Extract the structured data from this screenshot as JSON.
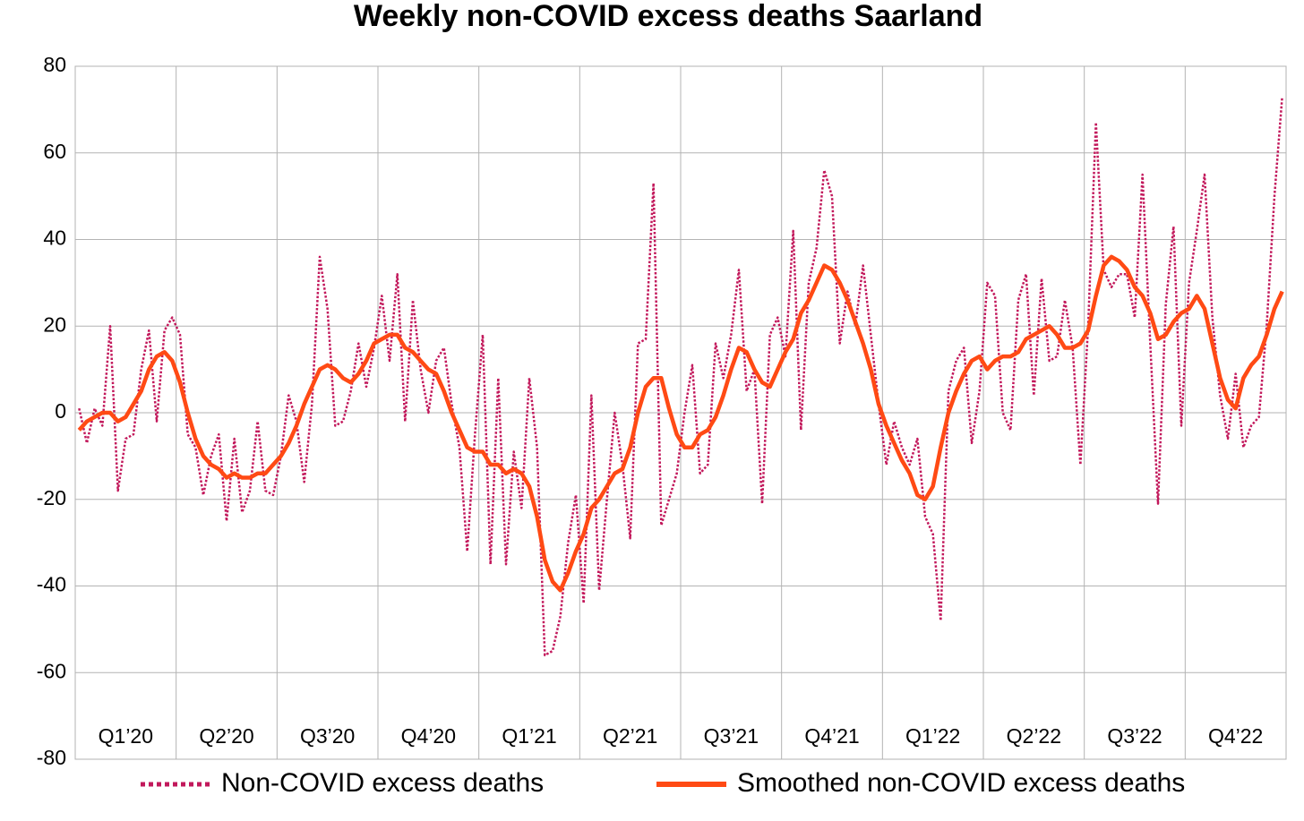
{
  "chart_data": {
    "type": "line",
    "title": "Weekly non-COVID excess deaths Saarland",
    "categories": [
      null,
      null,
      null,
      null,
      null,
      null,
      "Q1’20",
      null,
      null,
      null,
      null,
      null,
      null,
      null,
      null,
      null,
      null,
      null,
      null,
      "Q2’20",
      null,
      null,
      null,
      null,
      null,
      null,
      null,
      null,
      null,
      null,
      null,
      null,
      "Q3’20",
      null,
      null,
      null,
      null,
      null,
      null,
      null,
      null,
      null,
      null,
      null,
      null,
      "Q4’20",
      null,
      null,
      null,
      null,
      null,
      null,
      null,
      null,
      null,
      null,
      null,
      null,
      "Q1’21",
      null,
      null,
      null,
      null,
      null,
      null,
      null,
      null,
      null,
      null,
      null,
      null,
      "Q2’21",
      null,
      null,
      null,
      null,
      null,
      null,
      null,
      null,
      null,
      null,
      null,
      null,
      "Q3’21",
      null,
      null,
      null,
      null,
      null,
      null,
      null,
      null,
      null,
      null,
      null,
      null,
      "Q4’21",
      null,
      null,
      null,
      null,
      null,
      null,
      null,
      null,
      null,
      null,
      null,
      null,
      "Q1’22",
      null,
      null,
      null,
      null,
      null,
      null,
      null,
      null,
      null,
      null,
      null,
      null,
      "Q2’22",
      null,
      null,
      null,
      null,
      null,
      null,
      null,
      null,
      null,
      null,
      null,
      null,
      "Q3’22",
      null,
      null,
      null,
      null,
      null,
      null,
      null,
      null,
      null,
      null,
      null,
      null,
      "Q4’22",
      null,
      null,
      null,
      null,
      null,
      null
    ],
    "series": [
      {
        "name": "Non-COVID excess deaths",
        "color": "#c2185b",
        "style": "dotted",
        "values": [
          1,
          -7,
          1,
          -3,
          20,
          -18,
          -6,
          -5,
          10,
          19,
          -2,
          19,
          22,
          18,
          -5,
          -8,
          -19,
          -10,
          -5,
          -25,
          -6,
          -23,
          -18,
          -2,
          -18,
          -19,
          -10,
          4,
          -2,
          -16,
          2,
          36,
          24,
          -3,
          -2,
          5,
          16,
          6,
          15,
          27,
          12,
          32,
          -2,
          26,
          10,
          0,
          12,
          15,
          2,
          -8,
          -32,
          -5,
          18,
          -35,
          8,
          -35,
          -9,
          -22,
          8,
          -8,
          -56,
          -55,
          -47,
          -30,
          -19,
          -44,
          4,
          -41,
          -20,
          0,
          -12,
          -29,
          16,
          17,
          53,
          -26,
          -20,
          -14,
          0,
          11,
          -14,
          -12,
          16,
          8,
          18,
          33,
          5,
          10,
          -21,
          18,
          22,
          13,
          42,
          -4,
          30,
          38,
          56,
          50,
          16,
          28,
          20,
          34,
          18,
          2,
          -12,
          -2,
          -8,
          -12,
          -6,
          -24,
          -28,
          -48,
          5,
          12,
          15,
          -7,
          5,
          30,
          27,
          0,
          -4,
          26,
          32,
          4,
          31,
          12,
          13,
          26,
          15,
          -12,
          20,
          67,
          33,
          29,
          32,
          32,
          22,
          55,
          16,
          -21,
          25,
          43,
          -3,
          30,
          42,
          55,
          22,
          4,
          -6,
          9,
          -8,
          -3,
          -1,
          20,
          50,
          73
        ]
      },
      {
        "name": "Smoothed non-COVID excess deaths",
        "color": "#ff4a14",
        "style": "solid",
        "values": [
          -4,
          -2,
          -1,
          0,
          0,
          -2,
          -1,
          2,
          5,
          10,
          13,
          14,
          12,
          7,
          0,
          -6,
          -10,
          -12,
          -13,
          -15,
          -14,
          -15,
          -15,
          -14,
          -14,
          -12,
          -10,
          -7,
          -3,
          2,
          6,
          10,
          11,
          10,
          8,
          7,
          9,
          12,
          16,
          17,
          18,
          18,
          15,
          14,
          12,
          10,
          9,
          5,
          0,
          -4,
          -8,
          -9,
          -9,
          -12,
          -12,
          -14,
          -13,
          -14,
          -17,
          -24,
          -34,
          -39,
          -41,
          -37,
          -32,
          -28,
          -22,
          -20,
          -17,
          -14,
          -13,
          -8,
          0,
          6,
          8,
          8,
          1,
          -5,
          -8,
          -8,
          -5,
          -4,
          -1,
          4,
          10,
          15,
          14,
          10,
          7,
          6,
          10,
          14,
          17,
          23,
          26,
          30,
          34,
          33,
          30,
          26,
          21,
          16,
          10,
          2,
          -3,
          -7,
          -11,
          -14,
          -19,
          -20,
          -17,
          -8,
          0,
          5,
          9,
          12,
          13,
          10,
          12,
          13,
          13,
          14,
          17,
          18,
          19,
          20,
          18,
          15,
          15,
          16,
          19,
          27,
          34,
          36,
          35,
          33,
          29,
          27,
          23,
          17,
          18,
          21,
          23,
          24,
          27,
          24,
          16,
          8,
          3,
          1,
          8,
          11,
          13,
          18,
          24,
          28
        ]
      }
    ],
    "ylim": [
      -80,
      80
    ],
    "yticks": [
      -80,
      -60,
      -40,
      -20,
      0,
      20,
      40,
      60,
      80
    ],
    "grid": true,
    "legend": "bottom"
  }
}
